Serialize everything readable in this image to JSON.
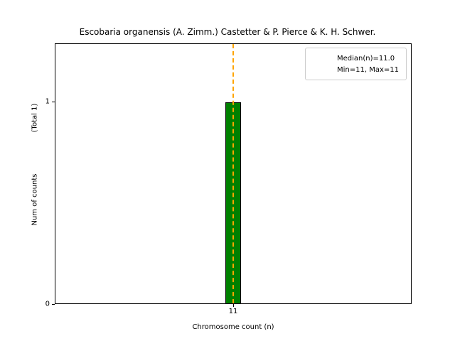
{
  "chart_data": {
    "type": "bar",
    "title": "Escobaria organensis (A. Zimm.) Castetter & P. Pierce & K. H. Schwer.",
    "xlabel": "Chromosome count (n)",
    "ylabel": "Num of counts",
    "ylabel_secondary": "(Total 1)",
    "categories": [
      "11"
    ],
    "values": [
      1
    ],
    "x_tick_labels": [
      "11"
    ],
    "y_tick_labels": [
      "0",
      "1"
    ],
    "y_tick_values": [
      0,
      1
    ],
    "ylim": [
      0,
      1.288
    ],
    "bar_color": "#008000",
    "bar_edge_color": "#000000",
    "median_line": {
      "x": 11,
      "value": 11.0,
      "color": "#FFA500",
      "style": "dashed"
    },
    "legend": {
      "position": "upper right",
      "entries": [
        {
          "label": "Median(n)=11.0",
          "has_sample": true,
          "sample_color": "#FFA500"
        },
        {
          "label": "Min=11, Max=11",
          "has_sample": false
        }
      ]
    }
  }
}
